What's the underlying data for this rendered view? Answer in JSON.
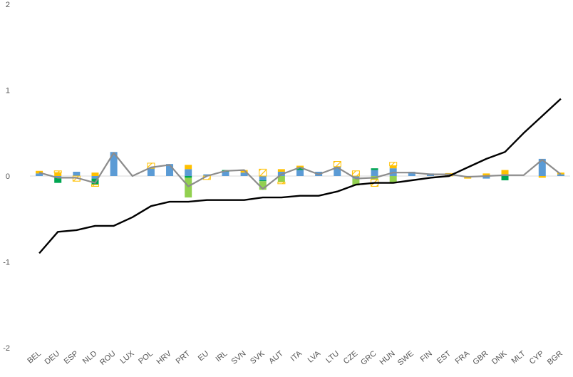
{
  "chart_data": {
    "type": "bar",
    "categories": [
      "BEL",
      "DEU",
      "ESP",
      "NLD",
      "ROU",
      "LUX",
      "POL",
      "HRV",
      "PRT",
      "EU",
      "IRL",
      "SVN",
      "SVK",
      "AUT",
      "ITA",
      "LVA",
      "LTU",
      "CZE",
      "GRC",
      "HUN",
      "SWE",
      "FIN",
      "EST",
      "FRA",
      "GBR",
      "DNK",
      "MLT",
      "CYP",
      "BGR"
    ],
    "ylim": [
      -2,
      2
    ],
    "yticks": [
      -2,
      -1,
      0,
      1,
      2
    ],
    "grid": false,
    "colors": {
      "blue": "#5b9bd5",
      "dark_green": "#00a651",
      "light_green": "#92d050",
      "gold": "#ffc000",
      "gold_hatched": "#ffc000",
      "gray_line": "#8c8c8c",
      "black_line": "#000000"
    },
    "series": [
      {
        "kind": "bar",
        "color": "blue",
        "values": [
          0.03,
          -0.02,
          0.05,
          -0.03,
          0.28,
          0.0,
          0.09,
          0.14,
          0.08,
          0.02,
          0.05,
          0.04,
          -0.05,
          0.05,
          0.07,
          0.05,
          0.11,
          -0.03,
          0.07,
          0.09,
          0.05,
          0.03,
          0.0,
          -0.01,
          -0.03,
          0.02,
          0.0,
          0.2,
          0.02
        ]
      },
      {
        "kind": "bar",
        "color": "dark_green",
        "values": [
          0.0,
          -0.06,
          0.0,
          -0.07,
          0.0,
          0.0,
          0.0,
          0.0,
          -0.02,
          0.0,
          0.02,
          0.0,
          -0.01,
          0.0,
          0.03,
          0.0,
          0.0,
          0.0,
          0.02,
          0.0,
          0.0,
          0.0,
          0.0,
          0.0,
          0.0,
          -0.05,
          0.0,
          0.0,
          0.0
        ]
      },
      {
        "kind": "bar",
        "color": "light_green",
        "values": [
          0.0,
          0.0,
          0.0,
          0.0,
          0.0,
          0.0,
          0.0,
          0.0,
          -0.23,
          0.0,
          0.0,
          0.0,
          -0.1,
          -0.07,
          0.0,
          0.0,
          0.0,
          -0.08,
          -0.04,
          -0.08,
          0.0,
          0.0,
          0.0,
          0.0,
          0.0,
          0.0,
          0.0,
          0.0,
          0.0
        ]
      },
      {
        "kind": "bar",
        "color": "gold",
        "values": [
          0.03,
          0.04,
          0.0,
          0.04,
          0.0,
          0.0,
          0.0,
          0.0,
          0.05,
          0.0,
          0.0,
          0.03,
          0.0,
          0.03,
          0.02,
          0.0,
          0.0,
          0.0,
          0.0,
          0.03,
          0.0,
          0.0,
          0.0,
          -0.02,
          0.03,
          0.05,
          0.0,
          -0.02,
          0.02
        ]
      },
      {
        "kind": "bar",
        "color": "gold_hatched",
        "hatched": true,
        "values": [
          0.0,
          0.02,
          -0.06,
          -0.02,
          0.0,
          0.0,
          0.06,
          0.0,
          0.0,
          -0.04,
          0.0,
          0.0,
          0.08,
          -0.02,
          0.0,
          0.0,
          0.06,
          0.06,
          -0.08,
          0.04,
          0.0,
          0.0,
          0.03,
          0.0,
          0.0,
          0.0,
          0.0,
          0.0,
          0.0
        ]
      },
      {
        "kind": "line",
        "color": "gray_line",
        "values": [
          0.04,
          -0.02,
          -0.02,
          -0.08,
          0.27,
          0.0,
          0.1,
          0.13,
          -0.12,
          0.0,
          0.06,
          0.07,
          -0.15,
          0.02,
          0.1,
          0.02,
          0.1,
          -0.03,
          -0.02,
          0.04,
          0.04,
          0.02,
          0.02,
          -0.01,
          0.0,
          0.01,
          0.01,
          0.19,
          0.02
        ]
      },
      {
        "kind": "line",
        "color": "black_line",
        "values": [
          -0.9,
          -0.65,
          -0.63,
          -0.58,
          -0.58,
          -0.48,
          -0.35,
          -0.3,
          -0.3,
          -0.28,
          -0.28,
          -0.28,
          -0.25,
          -0.25,
          -0.23,
          -0.23,
          -0.18,
          -0.1,
          -0.08,
          -0.08,
          -0.05,
          -0.02,
          0.0,
          0.1,
          0.2,
          0.28,
          0.5,
          0.7,
          0.9
        ]
      }
    ]
  }
}
